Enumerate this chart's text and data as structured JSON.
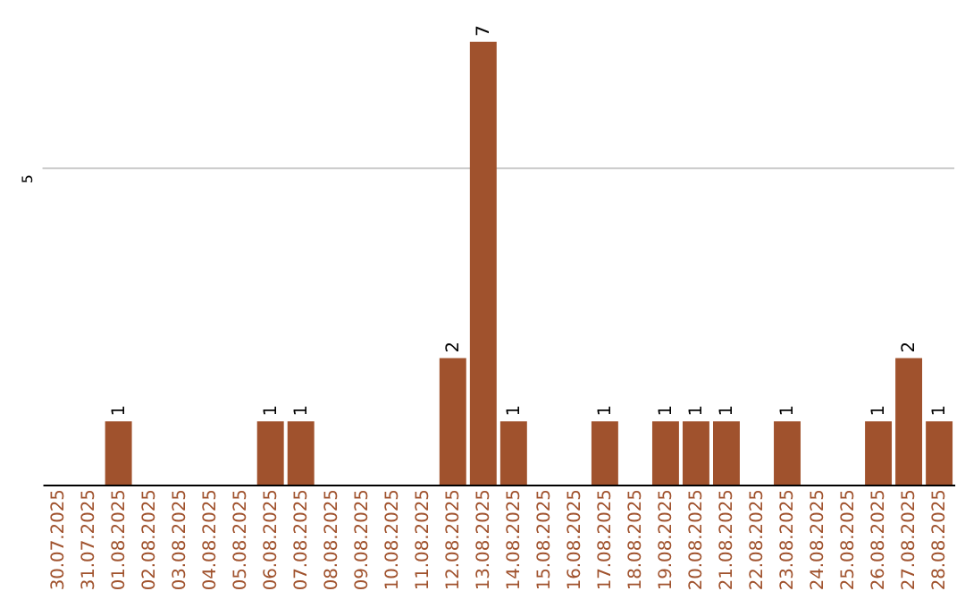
{
  "chart_data": {
    "type": "bar",
    "categories": [
      "30.07.2025",
      "31.07.2025",
      "01.08.2025",
      "02.08.2025",
      "03.08.2025",
      "04.08.2025",
      "05.08.2025",
      "06.08.2025",
      "07.08.2025",
      "08.08.2025",
      "09.08.2025",
      "10.08.2025",
      "11.08.2025",
      "12.08.2025",
      "13.08.2025",
      "14.08.2025",
      "15.08.2025",
      "16.08.2025",
      "17.08.2025",
      "18.08.2025",
      "19.08.2025",
      "20.08.2025",
      "21.08.2025",
      "22.08.2025",
      "23.08.2025",
      "24.08.2025",
      "25.08.2025",
      "26.08.2025",
      "27.08.2025",
      "28.08.2025"
    ],
    "values": [
      0,
      0,
      1,
      0,
      0,
      0,
      0,
      1,
      1,
      0,
      0,
      0,
      0,
      2,
      7,
      1,
      0,
      0,
      1,
      0,
      1,
      1,
      1,
      0,
      1,
      0,
      0,
      1,
      2,
      1
    ],
    "value_labels": [
      null,
      null,
      "1",
      null,
      null,
      null,
      null,
      "1",
      "1",
      null,
      null,
      null,
      null,
      "2",
      "7",
      "1",
      null,
      null,
      "1",
      null,
      "1",
      "1",
      "1",
      null,
      "1",
      null,
      null,
      "1",
      "2",
      "1"
    ],
    "color": "#a0522d",
    "ylim": [
      0,
      7
    ],
    "ref_lines": [
      {
        "axis": "y",
        "value": 5,
        "label": "5",
        "color": "#cccccc"
      }
    ]
  }
}
